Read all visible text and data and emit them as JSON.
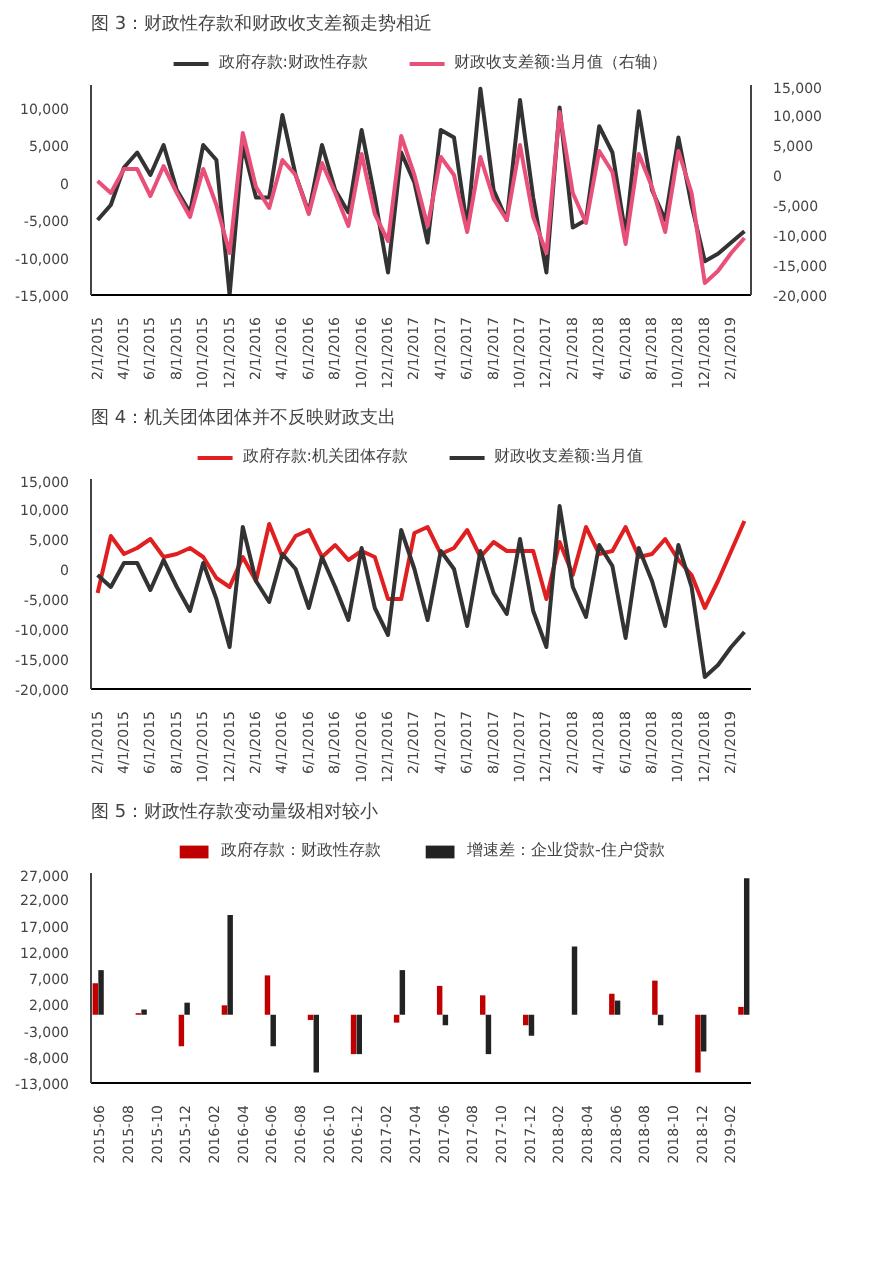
{
  "chart_data": [
    {
      "type": "line",
      "title": "图 3：财政性存款和财政收支差额走势相近",
      "categories": [
        "2/1/2015",
        null,
        "4/1/2015",
        null,
        "6/1/2015",
        null,
        "8/1/2015",
        null,
        "10/1/2015",
        null,
        "12/1/2015",
        null,
        "2/1/2016",
        null,
        "4/1/2016",
        null,
        "6/1/2016",
        null,
        "8/1/2016",
        null,
        "10/1/2016",
        null,
        "12/1/2016",
        null,
        "2/1/2017",
        null,
        "4/1/2017",
        null,
        "6/1/2017",
        null,
        "8/1/2017",
        null,
        "10/1/2017",
        null,
        "12/1/2017",
        null,
        "2/1/2018",
        null,
        "4/1/2018",
        null,
        "6/1/2018",
        null,
        "8/1/2018",
        null,
        "10/1/2018",
        null,
        "12/1/2018",
        null,
        "2/1/2019",
        null
      ],
      "series": [
        {
          "name": "政府存款:财政性存款",
          "color": "#333333",
          "values": [
            -5000,
            -3000,
            2000,
            4000,
            1000,
            5000,
            -1000,
            -4000,
            5000,
            3000,
            -15000,
            5000,
            -2000,
            -2000,
            9000,
            1000,
            -4000,
            5000,
            -1000,
            -4000,
            7000,
            -2000,
            -12000,
            4000,
            0,
            -8000,
            7000,
            6000,
            -6000,
            12500,
            -1000,
            -5000,
            11000,
            -2000,
            -12000,
            10000,
            -6000,
            -5000,
            7500,
            4000,
            -7000,
            9500,
            -1000,
            -5000,
            6000,
            -3000,
            -10500,
            -9500,
            -8000,
            -6500
          ]
        },
        {
          "name": "财政收支差额:当月值（右轴）",
          "color": "#e8507a",
          "axis": "y2",
          "values": [
            -1000,
            -3000,
            1000,
            1000,
            -3500,
            1500,
            -3000,
            -7000,
            1000,
            -5000,
            -13000,
            7000,
            -2000,
            -5500,
            2500,
            0,
            -6500,
            2000,
            -3000,
            -8500,
            3500,
            -6500,
            -11000,
            6500,
            0,
            -8500,
            3000,
            0,
            -9500,
            3000,
            -4000,
            -7500,
            5000,
            -7000,
            -13000,
            10500,
            -3000,
            -8000,
            4000,
            500,
            -11500,
            3500,
            -2000,
            -9500,
            4000,
            -3000,
            -18000,
            -16000,
            -13000,
            -10500
          ]
        }
      ],
      "ylim": [
        -15000,
        13000
      ],
      "yticks": [
        {
          "value": -15000,
          "label": "-15,000"
        },
        {
          "value": -10000,
          "label": "-10,000"
        },
        {
          "value": -5000,
          "label": "-5,000"
        },
        0,
        {
          "value": 5000,
          "label": "5,000"
        },
        {
          "value": 10000,
          "label": "10,000"
        }
      ],
      "y2lim": [
        -20000,
        15000
      ],
      "y2ticks": [
        {
          "value": -20000,
          "label": "-20,000"
        },
        {
          "value": -15000,
          "label": "-15,000"
        },
        {
          "value": -10000,
          "label": "-10,000"
        },
        {
          "value": -5000,
          "label": "-5,000"
        },
        0,
        {
          "value": 5000,
          "label": "5,000"
        },
        {
          "value": 10000,
          "label": "10,000"
        },
        {
          "value": 15000,
          "label": "15,000"
        }
      ],
      "legend": "top",
      "grid": false
    },
    {
      "type": "line",
      "title": "图 4：机关团体团体并不反映财政支出",
      "categories": [
        "2/1/2015",
        null,
        "4/1/2015",
        null,
        "6/1/2015",
        null,
        "8/1/2015",
        null,
        "10/1/2015",
        null,
        "12/1/2015",
        null,
        "2/1/2016",
        null,
        "4/1/2016",
        null,
        "6/1/2016",
        null,
        "8/1/2016",
        null,
        "10/1/2016",
        null,
        "12/1/2016",
        null,
        "2/1/2017",
        null,
        "4/1/2017",
        null,
        "6/1/2017",
        null,
        "8/1/2017",
        null,
        "10/1/2017",
        null,
        "12/1/2017",
        null,
        "2/1/2018",
        null,
        "4/1/2018",
        null,
        "6/1/2018",
        null,
        "8/1/2018",
        null,
        "10/1/2018",
        null,
        "12/1/2018",
        null,
        "2/1/2019",
        null
      ],
      "series": [
        {
          "name": "政府存款:机关团体存款",
          "color": "#e02020",
          "values": [
            -4000,
            5500,
            2500,
            3500,
            5000,
            2000,
            2500,
            3500,
            2000,
            -1500,
            -3000,
            2000,
            -2000,
            7500,
            2000,
            5500,
            6500,
            2000,
            4000,
            1500,
            3000,
            2000,
            -5000,
            -5000,
            6000,
            7000,
            2500,
            3500,
            6500,
            2000,
            4500,
            3000,
            3000,
            3000,
            -5000,
            4500,
            -1000,
            7000,
            2500,
            3000,
            7000,
            2000,
            2500,
            5000,
            1500,
            -1000,
            -6500,
            -2000,
            3000,
            8000
          ]
        },
        {
          "name": "财政收支差额:当月值",
          "color": "#333333",
          "values": [
            -1000,
            -3000,
            1000,
            1000,
            -3500,
            1500,
            -3000,
            -7000,
            1000,
            -5000,
            -13000,
            7000,
            -2000,
            -5500,
            2500,
            0,
            -6500,
            2000,
            -3000,
            -8500,
            3500,
            -6500,
            -11000,
            6500,
            0,
            -8500,
            3000,
            0,
            -9500,
            3000,
            -4000,
            -7500,
            5000,
            -7000,
            -13000,
            10500,
            -3000,
            -8000,
            4000,
            500,
            -11500,
            3500,
            -2000,
            -9500,
            4000,
            -3000,
            -18000,
            -16000,
            -13000,
            -10500
          ]
        }
      ],
      "ylim": [
        -20000,
        15000
      ],
      "yticks": [
        {
          "value": -20000,
          "label": "-20,000"
        },
        {
          "value": -15000,
          "label": "-15,000"
        },
        {
          "value": -10000,
          "label": "-10,000"
        },
        {
          "value": -5000,
          "label": "-5,000"
        },
        0,
        {
          "value": 5000,
          "label": "5,000"
        },
        {
          "value": 10000,
          "label": "10,000"
        },
        {
          "value": 15000,
          "label": "15,000"
        }
      ],
      "legend": "top",
      "grid": false
    },
    {
      "type": "bar",
      "title": "图 5：财政性存款变动量级相对较小",
      "categories": [
        "2015-06",
        null,
        "2015-08",
        null,
        "2015-10",
        null,
        "2015-12",
        null,
        "2016-02",
        null,
        "2016-04",
        null,
        "2016-06",
        null,
        "2016-08",
        null,
        "2016-10",
        null,
        "2016-12",
        null,
        "2017-02",
        null,
        "2017-04",
        null,
        "2017-06",
        null,
        "2017-08",
        null,
        "2017-10",
        null,
        "2017-12",
        null,
        "2018-02",
        null,
        "2018-04",
        null,
        "2018-06",
        null,
        "2018-08",
        null,
        "2018-10",
        null,
        "2018-12",
        null,
        "2019-02",
        null
      ],
      "series": [
        {
          "name": "政府存款：财政性存款",
          "color": "#c00000",
          "values": [
            6000,
            null,
            null,
            300,
            null,
            null,
            -6000,
            null,
            null,
            1800,
            null,
            null,
            7500,
            null,
            null,
            -1000,
            null,
            null,
            -7500,
            null,
            null,
            -1500,
            null,
            null,
            5500,
            null,
            null,
            3700,
            null,
            null,
            -2000,
            null,
            null,
            null,
            null,
            null,
            4000,
            null,
            null,
            6500,
            null,
            null,
            -11000,
            null,
            null,
            1500
          ]
        },
        {
          "name": "增速差：企业贷款-住户贷款",
          "color": "#222222",
          "values": [
            8500,
            null,
            null,
            1000,
            null,
            null,
            2300,
            null,
            null,
            19000,
            null,
            null,
            -6000,
            null,
            null,
            -11000,
            null,
            null,
            -7500,
            null,
            null,
            8500,
            null,
            null,
            -2000,
            null,
            null,
            -7500,
            null,
            null,
            -4000,
            null,
            null,
            13000,
            null,
            null,
            2700,
            null,
            null,
            -2000,
            null,
            null,
            -7000,
            null,
            null,
            26000
          ]
        }
      ],
      "ylim": [
        -13000,
        27000
      ],
      "yticks": [
        {
          "value": -13000,
          "label": "-13,000"
        },
        {
          "value": -8000,
          "label": "-8,000"
        },
        {
          "value": -3000,
          "label": "-3,000"
        },
        {
          "value": 2000,
          "label": "2,000"
        },
        {
          "value": 7000,
          "label": "7,000"
        },
        {
          "value": 12000,
          "label": "12,000"
        },
        {
          "value": 17000,
          "label": "17,000"
        },
        {
          "value": 22000,
          "label": "22,000"
        },
        {
          "value": 27000,
          "label": "27,000"
        }
      ],
      "legend": "top",
      "grid": false
    }
  ]
}
